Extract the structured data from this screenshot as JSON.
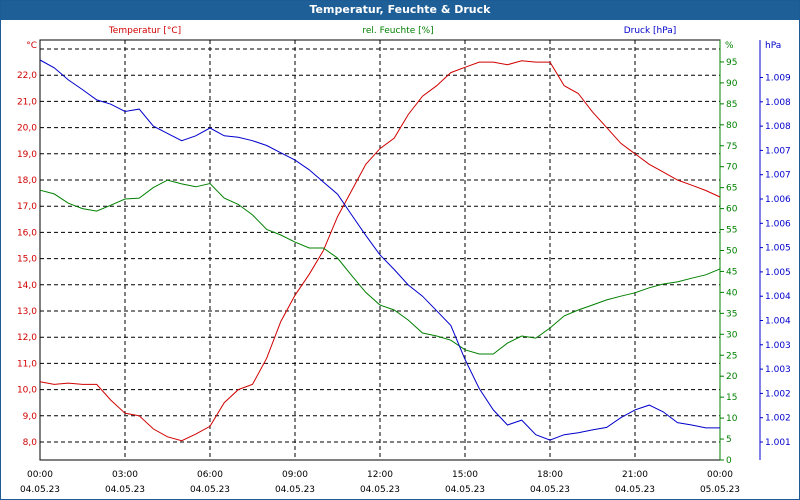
{
  "window_title": "Temperatur, Feuchte & Druck",
  "chart_data": {
    "type": "line",
    "title": "Temperatur, Feuchte & Druck",
    "x_hours": [
      0,
      0.5,
      1,
      1.5,
      2,
      2.5,
      3,
      3.5,
      4,
      4.5,
      5,
      5.5,
      6,
      6.5,
      7,
      7.5,
      8,
      8.5,
      9,
      9.5,
      10,
      10.5,
      11,
      11.5,
      12,
      12.5,
      13,
      13.5,
      14,
      14.5,
      15,
      15.5,
      16,
      16.5,
      17,
      17.5,
      18,
      18.5,
      19,
      19.5,
      20,
      20.5,
      21,
      21.5,
      22,
      22.5,
      23,
      23.5,
      24
    ],
    "x_ticks": [
      {
        "time": "00:00",
        "date": "04.05.23"
      },
      {
        "time": "03:00",
        "date": "04.05.23"
      },
      {
        "time": "06:00",
        "date": "04.05.23"
      },
      {
        "time": "09:00",
        "date": "04.05.23"
      },
      {
        "time": "12:00",
        "date": "04.05.23"
      },
      {
        "time": "15:00",
        "date": "04.05.23"
      },
      {
        "time": "18:00",
        "date": "04.05.23"
      },
      {
        "time": "21:00",
        "date": "04.05.23"
      },
      {
        "time": "00:00",
        "date": "05.05.23"
      }
    ],
    "series": [
      {
        "name": "Temperatur [°C]",
        "unit": "°C",
        "color": "#d00000",
        "ylim": [
          7.3,
          23.3
        ],
        "values": [
          10.3,
          10.2,
          10.25,
          10.2,
          10.2,
          9.6,
          9.1,
          9.0,
          8.5,
          8.2,
          8.05,
          8.3,
          8.6,
          9.5,
          10.0,
          10.2,
          11.2,
          12.6,
          13.6,
          14.4,
          15.3,
          16.6,
          17.6,
          18.6,
          19.2,
          19.6,
          20.5,
          21.2,
          21.6,
          22.1,
          22.3,
          22.5,
          22.5,
          22.4,
          22.55,
          22.5,
          22.5,
          21.6,
          21.3,
          20.6,
          20.0,
          19.4,
          19.0,
          18.6,
          18.3,
          18.0,
          17.8,
          17.6,
          17.35
        ]
      },
      {
        "name": "rel. Feuchte [%]",
        "unit": "%",
        "color": "#008000",
        "ylim": [
          0,
          100
        ],
        "values": [
          64.4,
          63.5,
          61.3,
          60,
          59.4,
          60.8,
          62.3,
          62.5,
          65,
          66.8,
          65.9,
          65.2,
          66,
          62.5,
          61,
          58.5,
          55,
          53.7,
          52,
          50.6,
          50.6,
          48.2,
          44,
          40,
          37,
          35.8,
          33.4,
          30.3,
          29.6,
          28.6,
          26.3,
          25.3,
          25.3,
          27.9,
          29.6,
          29.1,
          31.5,
          34.4,
          35.8,
          37,
          38.2,
          39.1,
          39.9,
          41.1,
          42,
          42.5,
          43.4,
          44.2,
          45.6
        ]
      },
      {
        "name": "Druck [hPa]",
        "unit": "hPa",
        "color": "#0000cc",
        "ylim": [
          1000.6,
          1009.25
        ],
        "values": [
          1008.86,
          1008.7,
          1008.45,
          1008.25,
          1008.04,
          1007.95,
          1007.8,
          1007.85,
          1007.5,
          1007.35,
          1007.2,
          1007.3,
          1007.46,
          1007.3,
          1007.27,
          1007.2,
          1007.1,
          1006.95,
          1006.8,
          1006.6,
          1006.35,
          1006.1,
          1005.67,
          1005.25,
          1004.85,
          1004.55,
          1004.23,
          1004.0,
          1003.7,
          1003.4,
          1002.7,
          1002.1,
          1001.66,
          1001.35,
          1001.45,
          1001.15,
          1001.04,
          1001.15,
          1001.19,
          1001.25,
          1001.3,
          1001.5,
          1001.66,
          1001.76,
          1001.62,
          1001.4,
          1001.35,
          1001.29,
          1001.29
        ]
      }
    ],
    "temp_ticks": [
      "8,0",
      "9,0",
      "10,0",
      "11,0",
      "12,0",
      "13,0",
      "14,0",
      "15,0",
      "16,0",
      "17,0",
      "18,0",
      "19,0",
      "20,0",
      "21,0",
      "22,0"
    ],
    "hum_ticks": [
      "0",
      "5",
      "10",
      "15",
      "20",
      "25",
      "30",
      "35",
      "40",
      "45",
      "50",
      "55",
      "60",
      "65",
      "70",
      "75",
      "80",
      "85",
      "90",
      "95"
    ],
    "press_ticks": [
      "1.001",
      "1.002",
      "1.002",
      "1.003",
      "1.003",
      "1.004",
      "1.004",
      "1.005",
      "1.005",
      "1.006",
      "1.006",
      "1.007",
      "1.007",
      "1.008",
      "1.008",
      "1.009"
    ],
    "temp_unit_label": "°C",
    "hum_unit_label": "%",
    "press_unit_label": "hPa",
    "grid": true
  }
}
